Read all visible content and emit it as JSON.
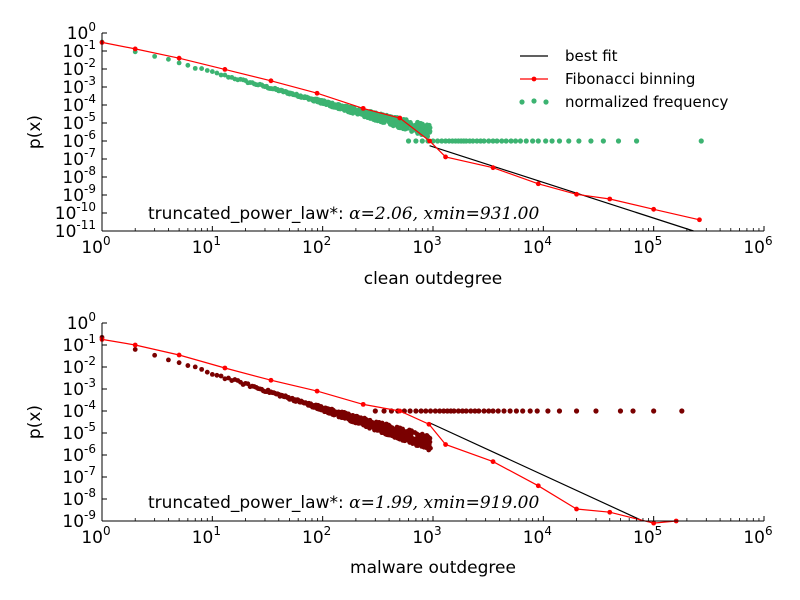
{
  "colors": {
    "clean_scatter": "#3cb371",
    "malware_scatter": "#7a0000",
    "fib": "#ff0000",
    "fit": "#000000"
  },
  "legend": {
    "location": "top-right",
    "entries": [
      {
        "label": "best fit",
        "style": "line"
      },
      {
        "label": "Fibonacci binning",
        "style": "line-marker"
      },
      {
        "label": "normalized frequency",
        "style": "scatter"
      }
    ]
  },
  "chart_data": [
    {
      "type": "scatter",
      "panel": "top",
      "xscale": "log",
      "yscale": "log",
      "xlabel": "clean outdegree",
      "ylabel": "p(x)",
      "xlim": [
        1,
        1000000
      ],
      "ylim": [
        1e-11,
        1
      ],
      "xtick_exponents": [
        0,
        1,
        2,
        3,
        4,
        5,
        6
      ],
      "ytick_exponents": [
        0,
        -1,
        -2,
        -3,
        -4,
        -5,
        -6,
        -7,
        -8,
        -9,
        -10,
        -11
      ],
      "annotation": {
        "prefix": "truncated_power_law*: ",
        "math": "α=2.06, xmin=931.00"
      },
      "fit": {
        "alpha": 2.06,
        "xmin": 931.0,
        "x": [
          931,
          230000
        ],
        "y": [
          5.5e-07,
          1e-11
        ]
      },
      "fibonacci_binning": {
        "x": [
          1,
          2,
          3,
          5,
          8,
          13,
          21,
          34,
          55,
          89,
          144,
          233,
          377,
          610,
          987,
          1597,
          2584,
          4181,
          6765,
          10946,
          17711,
          28657,
          46368,
          75025,
          121393,
          196418,
          260000
        ],
        "y": [
          0.22,
          0.09,
          0.05,
          0.025,
          0.012,
          0.0055,
          0.0025,
          0.0011,
          0.0005,
          0.00022,
          0.0001,
          4.5e-05,
          1.8e-05,
          5e-06,
          2e-06,
          1e-06,
          3e-07,
          1e-07,
          3e-08,
          1e-08,
          3e-09,
          1e-09,
          3e-10,
          1e-10,
          3e-11,
          1e-11,
          5e-11
        ]
      },
      "fib_line": {
        "x": [
          1,
          2,
          5,
          13,
          34,
          89,
          233,
          500,
          931,
          1300,
          3500,
          9000,
          20000,
          40000,
          100000,
          260000
        ],
        "y": [
          0.3,
          0.13,
          0.04,
          0.0095,
          0.0022,
          0.00045,
          6.5e-05,
          1.9e-05,
          1e-06,
          1.3e-07,
          3.3e-08,
          4.2e-09,
          1.1e-09,
          6e-10,
          1.6e-10,
          4.2e-11
        ]
      },
      "frequency_points": {
        "dense": {
          "x_range": [
            1,
            950
          ],
          "y_at_1": 0.3,
          "slope": -1.66
        },
        "floor": {
          "y": 1e-06,
          "x": [
            600,
            700,
            800,
            900,
            1000,
            1100,
            1200,
            1300,
            1400,
            1500,
            1600,
            1700,
            1800,
            1900,
            2000,
            2150,
            2300,
            2500,
            2700,
            2900,
            3200,
            3500,
            3800,
            4200,
            4600,
            5100,
            5600,
            6200,
            7000,
            8000,
            9000,
            10500,
            12000,
            14000,
            17000,
            21000,
            27000,
            35000,
            48000,
            70000,
            270000
          ]
        }
      }
    },
    {
      "type": "scatter",
      "panel": "bottom",
      "xscale": "log",
      "yscale": "log",
      "xlabel": "malware outdegree",
      "ylabel": "p(x)",
      "xlim": [
        1,
        1000000
      ],
      "ylim": [
        1e-09,
        1
      ],
      "xtick_exponents": [
        0,
        1,
        2,
        3,
        4,
        5,
        6
      ],
      "ytick_exponents": [
        0,
        -1,
        -2,
        -3,
        -4,
        -5,
        -6,
        -7,
        -8,
        -9
      ],
      "annotation": {
        "prefix": "truncated_power_law*: ",
        "math": "α=1.99, xmin=919.00"
      },
      "fit": {
        "alpha": 1.99,
        "xmin": 919.0,
        "x": [
          919,
          80000
        ],
        "y": [
          3e-05,
          1e-09
        ]
      },
      "fib_line": {
        "x": [
          1,
          2,
          5,
          13,
          34,
          89,
          233,
          500,
          919,
          1300,
          3500,
          9000,
          20000,
          40000,
          100000,
          160000
        ],
        "y": [
          0.18,
          0.1,
          0.035,
          0.009,
          0.0025,
          0.0008,
          0.0002,
          0.0001,
          2.5e-05,
          3e-06,
          5e-07,
          4e-08,
          3.5e-09,
          2.5e-09,
          8e-10,
          1e-09
        ]
      },
      "frequency_points": {
        "dense": {
          "x_range": [
            1,
            950
          ],
          "y_at_1": 0.2,
          "slope": -1.6
        },
        "floor": {
          "y": 0.0001,
          "x": [
            300,
            360,
            420,
            480,
            550,
            620,
            700,
            780,
            860,
            950,
            1050,
            1150,
            1250,
            1350,
            1450,
            1550,
            1700,
            1850,
            2000,
            2200,
            2400,
            2600,
            2900,
            3200,
            3500,
            3900,
            4400,
            5000,
            5700,
            6500,
            7600,
            8800,
            11000,
            14000,
            20000,
            30000,
            50000,
            65000,
            100000,
            180000
          ]
        }
      }
    }
  ]
}
